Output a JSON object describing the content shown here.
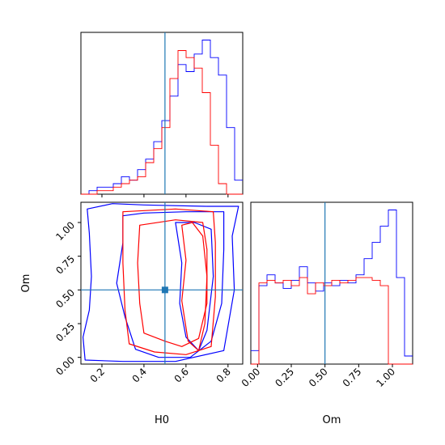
{
  "chart_data": [
    {
      "type": "histogram",
      "panel": "H0 marginal",
      "xlim": [
        0.1,
        0.87
      ],
      "x_ticks": [
        "0.2",
        "0.4",
        "0.6",
        "0.8"
      ],
      "truth_value": 0.5,
      "bins": [
        0.1,
        0.1385,
        0.177,
        0.2155,
        0.254,
        0.2925,
        0.331,
        0.3695,
        0.408,
        0.4465,
        0.485,
        0.5235,
        0.562,
        0.6005,
        0.639,
        0.6775,
        0.716,
        0.7545,
        0.793,
        0.8315,
        0.87
      ],
      "series": [
        {
          "name": "",
          "color": "#0000ff",
          "counts": [
            0,
            1,
            2,
            2,
            3,
            5,
            4,
            7,
            10,
            15,
            21,
            28,
            37,
            35,
            40,
            44,
            39,
            34,
            19,
            4
          ]
        },
        {
          "name": "",
          "color": "#ff0000",
          "counts": [
            0,
            0,
            1,
            1,
            2,
            3,
            4,
            5,
            9,
            13,
            19,
            33,
            41,
            39,
            36,
            29,
            14,
            3,
            0,
            0
          ]
        }
      ]
    },
    {
      "type": "contour",
      "panel": "H0 vs Om",
      "xlabel": "H0",
      "ylabel": "Om",
      "xlim": [
        0.1,
        0.87
      ],
      "ylim": [
        -0.05,
        1.15
      ],
      "x_ticks": [
        "0.2",
        "0.4",
        "0.6",
        "0.8"
      ],
      "y_ticks": [
        "0.00",
        "0.25",
        "0.50",
        "0.75",
        "1.00"
      ],
      "truth": {
        "H0": 0.5,
        "Om": 0.5
      },
      "series": [
        {
          "name": "",
          "color": "#0000ff",
          "contours": [
            [
              [
                0.13,
                1.1
              ],
              [
                0.14,
                0.92
              ],
              [
                0.15,
                0.6
              ],
              [
                0.14,
                0.35
              ],
              [
                0.11,
                0.15
              ],
              [
                0.12,
                -0.02
              ],
              [
                0.3,
                -0.03
              ],
              [
                0.55,
                -0.03
              ],
              [
                0.78,
                0.05
              ],
              [
                0.83,
                0.5
              ],
              [
                0.82,
                0.9
              ],
              [
                0.85,
                1.12
              ],
              [
                0.7,
                1.12
              ],
              [
                0.4,
                1.13
              ],
              [
                0.25,
                1.14
              ],
              [
                0.13,
                1.1
              ]
            ],
            [
              [
                0.3,
                1.05
              ],
              [
                0.3,
                0.85
              ],
              [
                0.27,
                0.55
              ],
              [
                0.31,
                0.3
              ],
              [
                0.36,
                0.06
              ],
              [
                0.47,
                0.0
              ],
              [
                0.62,
                0.0
              ],
              [
                0.72,
                0.12
              ],
              [
                0.77,
                0.4
              ],
              [
                0.78,
                0.8
              ],
              [
                0.78,
                1.08
              ],
              [
                0.6,
                1.08
              ],
              [
                0.4,
                1.07
              ],
              [
                0.3,
                1.05
              ]
            ],
            [
              [
                0.55,
                1.0
              ],
              [
                0.58,
                0.7
              ],
              [
                0.57,
                0.4
              ],
              [
                0.6,
                0.15
              ],
              [
                0.66,
                0.05
              ],
              [
                0.7,
                0.2
              ],
              [
                0.73,
                0.6
              ],
              [
                0.72,
                0.95
              ],
              [
                0.64,
                1.0
              ],
              [
                0.55,
                1.0
              ]
            ]
          ]
        },
        {
          "name": "",
          "color": "#ff0000",
          "contours": [
            [
              [
                0.3,
                1.08
              ],
              [
                0.3,
                0.7
              ],
              [
                0.31,
                0.35
              ],
              [
                0.33,
                0.1
              ],
              [
                0.45,
                0.04
              ],
              [
                0.6,
                0.02
              ],
              [
                0.72,
                0.08
              ],
              [
                0.74,
                0.45
              ],
              [
                0.74,
                0.85
              ],
              [
                0.73,
                1.08
              ],
              [
                0.55,
                1.1
              ],
              [
                0.3,
                1.08
              ]
            ],
            [
              [
                0.38,
                0.98
              ],
              [
                0.37,
                0.7
              ],
              [
                0.38,
                0.4
              ],
              [
                0.4,
                0.18
              ],
              [
                0.5,
                0.12
              ],
              [
                0.58,
                0.08
              ],
              [
                0.66,
                0.14
              ],
              [
                0.7,
                0.4
              ],
              [
                0.7,
                0.8
              ],
              [
                0.68,
                1.0
              ],
              [
                0.55,
                1.02
              ],
              [
                0.38,
                0.98
              ]
            ],
            [
              [
                0.58,
                0.98
              ],
              [
                0.6,
                0.72
              ],
              [
                0.58,
                0.42
              ],
              [
                0.61,
                0.12
              ],
              [
                0.66,
                0.05
              ],
              [
                0.69,
                0.25
              ],
              [
                0.7,
                0.6
              ],
              [
                0.68,
                0.9
              ],
              [
                0.63,
                1.0
              ],
              [
                0.58,
                0.98
              ]
            ]
          ]
        }
      ]
    },
    {
      "type": "histogram",
      "panel": "Om marginal",
      "xlabel": "Om",
      "xlim": [
        -0.05,
        1.15
      ],
      "x_ticks": [
        "0.00",
        "0.25",
        "0.50",
        "0.75",
        "1.00"
      ],
      "truth_value": 0.5,
      "bins": [
        -0.05,
        0.01,
        0.07,
        0.13,
        0.19,
        0.25,
        0.31,
        0.37,
        0.43,
        0.49,
        0.55,
        0.61,
        0.67,
        0.73,
        0.79,
        0.85,
        0.91,
        0.97,
        1.03,
        1.09,
        1.15
      ],
      "series": [
        {
          "name": "",
          "color": "#0000ff",
          "counts": [
            5,
            29,
            33,
            30,
            28,
            31,
            36,
            30,
            27,
            30,
            29,
            31,
            30,
            33,
            39,
            45,
            51,
            57,
            32,
            3
          ]
        },
        {
          "name": "",
          "color": "#ff0000",
          "counts": [
            0,
            30,
            31,
            30,
            31,
            29,
            32,
            26,
            30,
            29,
            31,
            30,
            31,
            32,
            32,
            31,
            29,
            0,
            0,
            0
          ]
        }
      ]
    }
  ]
}
